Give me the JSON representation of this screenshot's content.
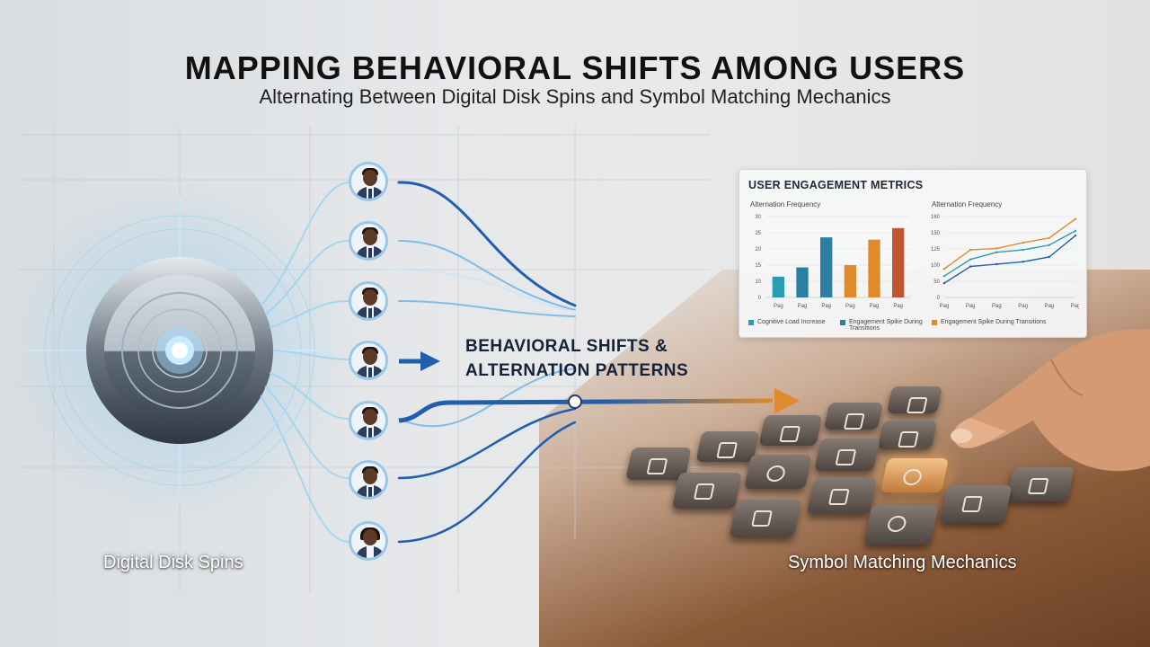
{
  "title": "MAPPING BEHAVIORAL SHIFTS AMONG USERS",
  "subtitle": "Alternating Between Digital Disk Spins and Symbol Matching Mechanics",
  "center_label": {
    "line1": "BEHAVIORAL SHIFTS &",
    "line2": "ALTERNATION PATTERNS"
  },
  "left_label": "Digital Disk Spins",
  "right_label": "Symbol Matching Mechanics",
  "users": [
    "user-1",
    "user-2",
    "user-3",
    "user-4",
    "user-5",
    "user-6",
    "user-7"
  ],
  "colors": {
    "blue": "#1f5fae",
    "glow": "#6ec6ff",
    "orange": "#e08a2e",
    "teal": "#2a9db5",
    "brown": "#c0552e"
  },
  "metrics_panel": {
    "title": "USER ENGAGEMENT METRICS",
    "chart_left_title": "Alternation Frequency",
    "chart_right_title": "Alternation Frequency",
    "legend": [
      {
        "label": "Cognitive Load Increase",
        "color": "#2a9db5"
      },
      {
        "label": "Engagement Spike During Transitions",
        "color": "#2a7fa3"
      },
      {
        "label": "Engagement Spike During Transitions",
        "color": "#e08a2e"
      }
    ]
  },
  "chart_data": [
    {
      "type": "bar",
      "title": "Alternation Frequency",
      "categories": [
        "Pag",
        "Pag",
        "Pag",
        "Pag",
        "Pag",
        "Pag"
      ],
      "yticks": [
        "0",
        "10",
        "15",
        "20",
        "25",
        "30"
      ],
      "ylim": [
        0,
        35
      ],
      "values": [
        9,
        13,
        26,
        14,
        25,
        30
      ],
      "colors": [
        "#2a9db5",
        "#2a7fa3",
        "#2a7fa3",
        "#e08a2e",
        "#e08a2e",
        "#c0552e"
      ]
    },
    {
      "type": "line",
      "title": "Alternation Frequency",
      "categories": [
        "Pag",
        "Pag",
        "Pag",
        "Pag",
        "Pag",
        "Pag"
      ],
      "yticks": [
        "0",
        "50",
        "100",
        "125",
        "150",
        "160"
      ],
      "ylim": [
        0,
        170
      ],
      "series": [
        {
          "color": "#e08a2e",
          "values": [
            60,
            100,
            103,
            115,
            125,
            165
          ]
        },
        {
          "color": "#2a9db5",
          "values": [
            45,
            80,
            95,
            100,
            110,
            140
          ]
        },
        {
          "color": "#1f5fae",
          "values": [
            30,
            65,
            70,
            75,
            85,
            130
          ]
        }
      ]
    }
  ]
}
